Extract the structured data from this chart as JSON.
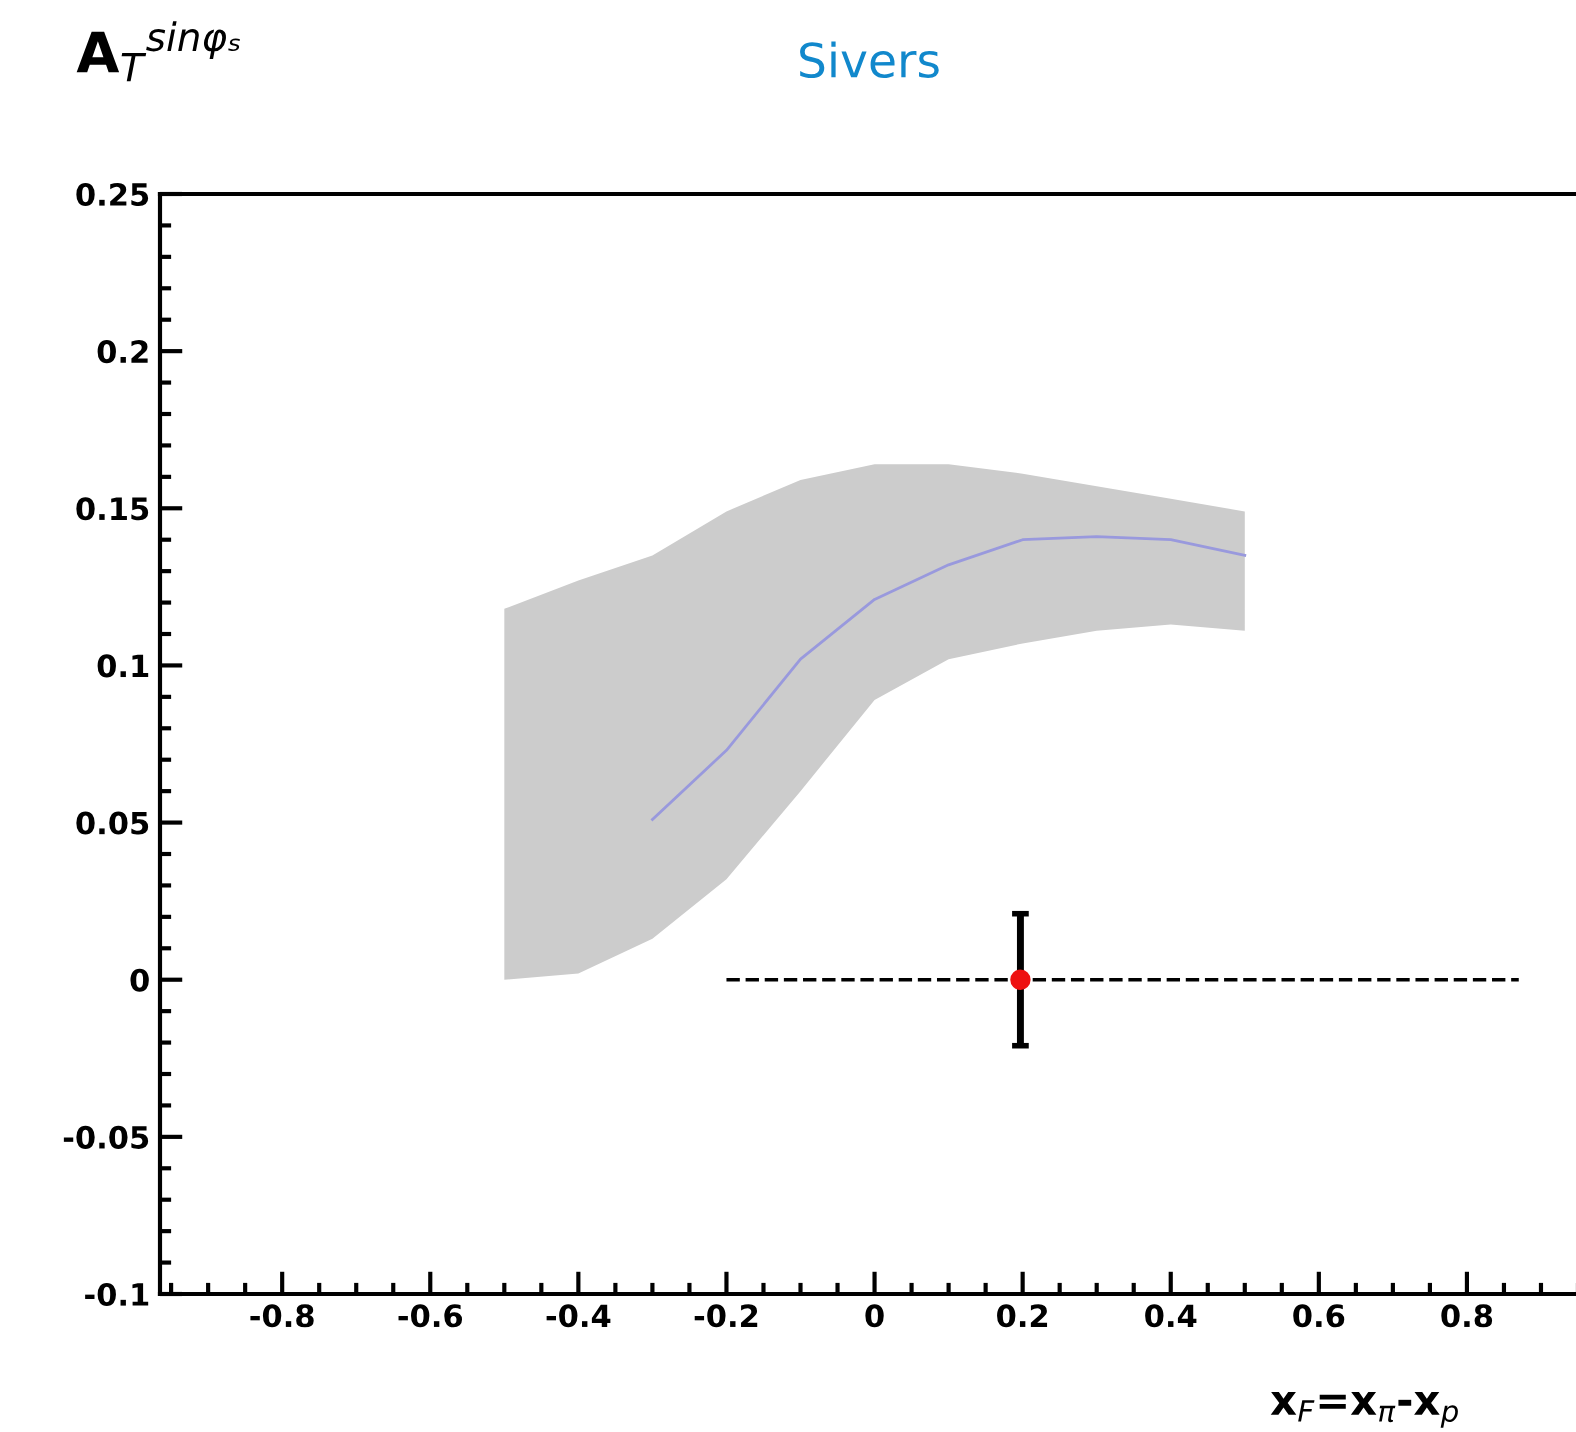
{
  "chart_data": {
    "type": "line",
    "title": "Sivers",
    "ylabel": "A$_{T}$$^{sinφₛ}$",
    "xlabel": "x$_{F}$=x$_{π}$-x$_{p}$",
    "xlim": [
      -0.965,
      0.95
    ],
    "ylim": [
      -0.1,
      0.25
    ],
    "xticks": [
      -0.8,
      -0.6,
      -0.4,
      -0.2,
      0,
      0.2,
      0.4,
      0.6,
      0.8
    ],
    "yticks": [
      -0.1,
      -0.05,
      0,
      0.05,
      0.1,
      0.15,
      0.2,
      0.25
    ],
    "grid": false,
    "series": [
      {
        "color": "#9999dd",
        "x": [
          -0.5,
          -0.4,
          -0.3,
          -0.2,
          -0.1,
          0,
          0.1,
          0.2,
          0.3,
          0.4,
          0.5
        ],
        "values": [
          null,
          null,
          0.051,
          0.073,
          0.102,
          0.121,
          0.132,
          0.14,
          0.141,
          0.14,
          0.135
        ],
        "lower": [
          0.0,
          0.002,
          0.013,
          0.032,
          0.06,
          0.089,
          0.102,
          0.107,
          0.111,
          0.113,
          0.111
        ],
        "upper": [
          0.118,
          0.127,
          0.135,
          0.149,
          0.159,
          0.164,
          0.164,
          0.161,
          0.157,
          0.153,
          0.149
        ]
      },
      {
        "type": "scatter",
        "color": "#ee1111",
        "x": [
          0.197
        ],
        "values": [
          0
        ],
        "errors": [
          0.021
        ],
        "xerrors": [
          [
            -0.2,
            0.87
          ]
        ],
        "line_style": "dashed",
        "marker": "circle"
      }
    ]
  }
}
